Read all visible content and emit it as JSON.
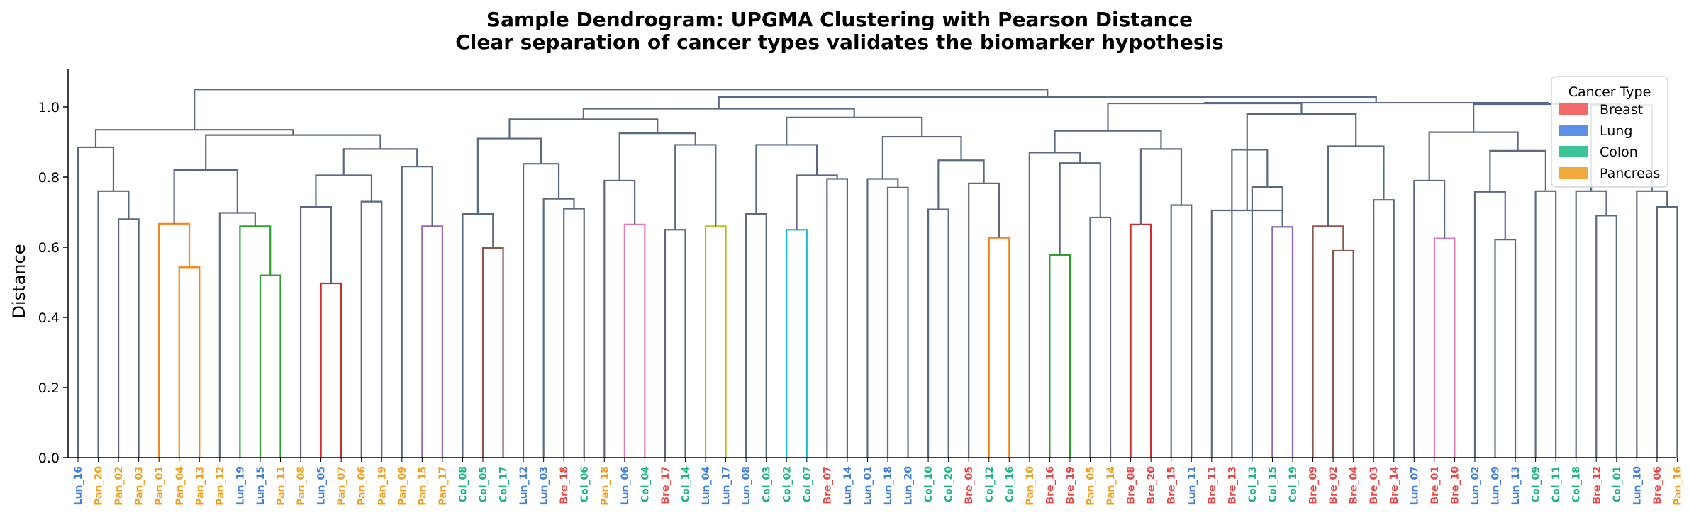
{
  "chart_data": {
    "type": "dendrogram",
    "title_line1": "Sample Dendrogram: UPGMA Clustering with Pearson Distance",
    "title_line2": "Clear separation of cancer types validates the biomarker hypothesis",
    "xlabel": "",
    "ylabel": "Distance",
    "ylim": [
      0.0,
      1.1
    ],
    "yticks": [
      "0.0",
      "0.2",
      "0.4",
      "0.6",
      "0.8",
      "1.0"
    ],
    "legend": {
      "title": "Cancer Type",
      "position": "top-right",
      "entries": [
        {
          "label": "Breast",
          "color": "#f26b6b"
        },
        {
          "label": "Lung",
          "color": "#5b8fe8"
        },
        {
          "label": "Colon",
          "color": "#3cc397"
        },
        {
          "label": "Pancreas",
          "color": "#f2a93b"
        }
      ]
    },
    "type_colors": {
      "Bre": "#e84545",
      "Lun": "#3f7fe0",
      "Col": "#1fb57f",
      "Pan": "#f0a020"
    },
    "leaves": [
      "Lun_16",
      "Pan_20",
      "Pan_02",
      "Pan_03",
      "Pan_01",
      "Pan_04",
      "Pan_13",
      "Pan_12",
      "Lun_19",
      "Lun_15",
      "Pan_11",
      "Pan_08",
      "Lun_05",
      "Pan_07",
      "Pan_06",
      "Pan_19",
      "Pan_09",
      "Pan_15",
      "Pan_17",
      "Col_08",
      "Col_05",
      "Col_17",
      "Lun_12",
      "Lun_03",
      "Bre_18",
      "Col_06",
      "Pan_18",
      "Lun_06",
      "Col_04",
      "Bre_17",
      "Col_14",
      "Lun_04",
      "Lun_17",
      "Lun_08",
      "Col_03",
      "Col_02",
      "Col_07",
      "Bre_07",
      "Lun_14",
      "Lun_01",
      "Lun_18",
      "Lun_20",
      "Col_10",
      "Col_20",
      "Bre_05",
      "Col_12",
      "Col_16",
      "Pan_10",
      "Bre_16",
      "Bre_19",
      "Pan_05",
      "Pan_14",
      "Bre_08",
      "Bre_20",
      "Bre_15",
      "Lun_11",
      "Bre_11",
      "Bre_13",
      "Col_13",
      "Col_15",
      "Col_19",
      "Bre_09",
      "Bre_02",
      "Bre_04",
      "Bre_03",
      "Bre_14",
      "Lun_07",
      "Bre_01",
      "Bre_10",
      "Lun_02",
      "Lun_09",
      "Lun_13",
      "Col_09",
      "Col_11",
      "Col_18",
      "Bre_12",
      "Col_01",
      "Lun_10",
      "Bre_06",
      "Pan_16"
    ],
    "default_link_color": "#5a6a82",
    "merges": [
      [
        "L2",
        "L3",
        0.68,
        "D"
      ],
      [
        "L1",
        "N0",
        0.76,
        "D"
      ],
      [
        "L0",
        "N1",
        0.885,
        "D"
      ],
      [
        "L5",
        "L6",
        0.543,
        "#ff7f0e"
      ],
      [
        "L4",
        "N3",
        0.667,
        "#ff7f0e"
      ],
      [
        "L9",
        "L10",
        0.52,
        "#2ca02c"
      ],
      [
        "L8",
        "N5",
        0.66,
        "#2ca02c"
      ],
      [
        "L7",
        "N6",
        0.698,
        "D"
      ],
      [
        "N4",
        "N7",
        0.82,
        "D"
      ],
      [
        "L12",
        "L13",
        0.497,
        "#d62728"
      ],
      [
        "L11",
        "N9",
        0.715,
        "D"
      ],
      [
        "L14",
        "L15",
        0.73,
        "D"
      ],
      [
        "N10",
        "N11",
        0.805,
        "D"
      ],
      [
        "L17",
        "L18",
        0.66,
        "#9467bd"
      ],
      [
        "L16",
        "N13",
        0.83,
        "D"
      ],
      [
        "N12",
        "N14",
        0.88,
        "D"
      ],
      [
        "N8",
        "N15",
        0.92,
        "D"
      ],
      [
        "N2",
        "N16",
        0.935,
        "D"
      ],
      [
        "L20",
        "L21",
        0.598,
        "#8c564b"
      ],
      [
        "L19",
        "N18",
        0.695,
        "D"
      ],
      [
        "L24",
        "L25",
        0.71,
        "D"
      ],
      [
        "L23",
        "N20",
        0.738,
        "D"
      ],
      [
        "L22",
        "N21",
        0.838,
        "D"
      ],
      [
        "N19",
        "N22",
        0.91,
        "D"
      ],
      [
        "L27",
        "L28",
        0.665,
        "#e377c2"
      ],
      [
        "L26",
        "N24",
        0.79,
        "D"
      ],
      [
        "L31",
        "L32",
        0.66,
        "#bcbd22"
      ],
      [
        "L29",
        "L30",
        0.65,
        "D"
      ],
      [
        "N27",
        "N26",
        0.892,
        "D"
      ],
      [
        "N25",
        "N28",
        0.925,
        "D"
      ],
      [
        "N23",
        "N29",
        0.965,
        "D"
      ],
      [
        "L35",
        "L36",
        0.65,
        "#17becf"
      ],
      [
        "L37",
        "L38",
        0.795,
        "D"
      ],
      [
        "N31",
        "N32",
        0.805,
        "D"
      ],
      [
        "L33",
        "L34",
        0.695,
        "D"
      ],
      [
        "N34",
        "N33",
        0.892,
        "D"
      ],
      [
        "L40",
        "L41",
        0.77,
        "D"
      ],
      [
        "L39",
        "N36",
        0.795,
        "D"
      ],
      [
        "L45",
        "L46",
        0.627,
        "#ff7f0e"
      ],
      [
        "L44",
        "N38",
        0.782,
        "D"
      ],
      [
        "L42",
        "L43",
        0.708,
        "D"
      ],
      [
        "N40",
        "N39",
        0.848,
        "D"
      ],
      [
        "N37",
        "N41",
        0.915,
        "D"
      ],
      [
        "N35",
        "N42",
        0.97,
        "D"
      ],
      [
        "N30",
        "N43",
        0.995,
        "D"
      ],
      [
        "L48",
        "L49",
        0.578,
        "#2ca02c"
      ],
      [
        "L50",
        "L51",
        0.685,
        "D"
      ],
      [
        "N45",
        "N46",
        0.84,
        "D"
      ],
      [
        "L47",
        "N47",
        0.87,
        "D"
      ],
      [
        "L52",
        "L53",
        0.665,
        "#d62728"
      ],
      [
        "L54",
        "L55",
        0.72,
        "D"
      ],
      [
        "N49",
        "N50",
        0.88,
        "D"
      ],
      [
        "N48",
        "N51",
        0.932,
        "D"
      ],
      [
        "L58",
        "L59",
        0.772,
        "D"
      ],
      [
        "L59x",
        "L60",
        0.658,
        "#9467bd"
      ],
      [
        "L57",
        "N53",
        0.878,
        "D"
      ],
      [
        "L56",
        "N54",
        0.705,
        "D"
      ],
      [
        "L62",
        "L63",
        0.59,
        "#8c564b"
      ],
      [
        "L61",
        "N57",
        0.66,
        "#8c564b"
      ],
      [
        "L64",
        "L65",
        0.735,
        "D"
      ],
      [
        "N58",
        "N59",
        0.888,
        "D"
      ],
      [
        "N56",
        "N60",
        0.98,
        "D"
      ],
      [
        "N52",
        "N61",
        1.01,
        "D"
      ],
      [
        "L67",
        "L68",
        0.625,
        "#e377c2"
      ],
      [
        "L66",
        "N63",
        0.79,
        "D"
      ],
      [
        "L70",
        "L71",
        0.622,
        "D"
      ],
      [
        "L69",
        "N65",
        0.758,
        "D"
      ],
      [
        "L72",
        "L73",
        0.76,
        "D"
      ],
      [
        "N66",
        "N67",
        0.875,
        "D"
      ],
      [
        "N64",
        "N68",
        0.928,
        "D"
      ],
      [
        "L75",
        "L76",
        0.69,
        "D"
      ],
      [
        "L74",
        "N70",
        0.76,
        "D"
      ],
      [
        "L78",
        "L79",
        0.715,
        "D"
      ],
      [
        "L77",
        "N72",
        0.76,
        "D"
      ],
      [
        "N71",
        "N73",
        1.005,
        "D"
      ],
      [
        "N69",
        "N74",
        1.008,
        "D"
      ],
      [
        "N62",
        "N75",
        1.012,
        "D"
      ],
      [
        "N44",
        "N76",
        1.028,
        "D"
      ],
      [
        "N17",
        "N77",
        1.05,
        "D"
      ]
    ]
  }
}
